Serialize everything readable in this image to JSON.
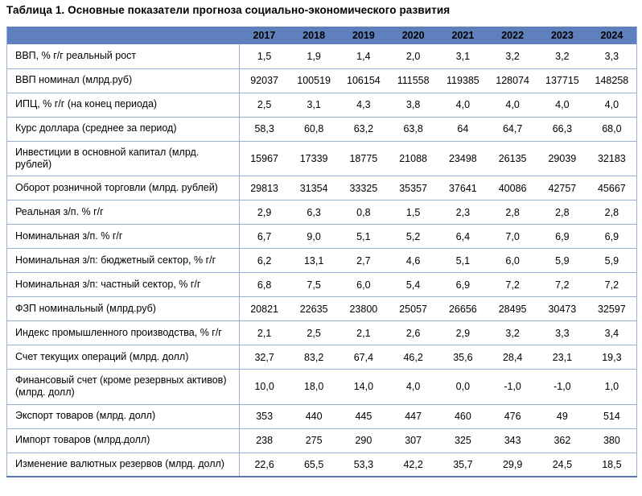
{
  "page": {
    "title": "Таблица 1. Основные показатели прогноза социально-экономического развития"
  },
  "colors": {
    "header_background": "#5E81BE",
    "row_separator": "#95B3D7",
    "table_bottom_border": "#5577AE",
    "text": "#000000"
  },
  "table": {
    "years": [
      "2017",
      "2018",
      "2019",
      "2020",
      "2021",
      "2022",
      "2023",
      "2024"
    ],
    "rows": [
      {
        "label": "ВВП, % г/г реальный рост",
        "values": [
          "1,5",
          "1,9",
          "1,4",
          "2,0",
          "3,1",
          "3,2",
          "3,2",
          "3,3"
        ]
      },
      {
        "label": "ВВП номинал (млрд.руб)",
        "values": [
          "92037",
          "100519",
          "106154",
          "111558",
          "119385",
          "128074",
          "137715",
          "148258"
        ]
      },
      {
        "label": "ИПЦ, % г/г (на конец периода)",
        "values": [
          "2,5",
          "3,1",
          "4,3",
          "3,8",
          "4,0",
          "4,0",
          "4,0",
          "4,0"
        ]
      },
      {
        "label": "Курс доллара (среднее за период)",
        "values": [
          "58,3",
          "60,8",
          "63,2",
          "63,8",
          "64",
          "64,7",
          "66,3",
          "68,0"
        ]
      },
      {
        "label": "Инвестиции в основной капитал (млрд. рублей)",
        "values": [
          "15967",
          "17339",
          "18775",
          "21088",
          "23498",
          "26135",
          "29039",
          "32183"
        ]
      },
      {
        "label": "Оборот розничной торговли (млрд. рублей)",
        "values": [
          "29813",
          "31354",
          "33325",
          "35357",
          "37641",
          "40086",
          "42757",
          "45667"
        ]
      },
      {
        "label": "Реальная з/п. % г/г",
        "values": [
          "2,9",
          "6,3",
          "0,8",
          "1,5",
          "2,3",
          "2,8",
          "2,8",
          "2,8"
        ]
      },
      {
        "label": "Номинальная з/п. % г/г",
        "values": [
          "6,7",
          "9,0",
          "5,1",
          "5,2",
          "6,4",
          "7,0",
          "6,9",
          "6,9"
        ]
      },
      {
        "label": "Номинальная з/п: бюджетный сектор, % г/г",
        "values": [
          "6,2",
          "13,1",
          "2,7",
          "4,6",
          "5,1",
          "6,0",
          "5,9",
          "5,9"
        ]
      },
      {
        "label": "Номинальная з/п: частный сектор, % г/г",
        "values": [
          "6,8",
          "7,5",
          "6,0",
          "5,4",
          "6,9",
          "7,2",
          "7,2",
          "7,2"
        ]
      },
      {
        "label": "ФЗП номинальный (млрд.руб)",
        "values": [
          "20821",
          "22635",
          "23800",
          "25057",
          "26656",
          "28495",
          "30473",
          "32597"
        ]
      },
      {
        "label": "Индекс промышленного производства, % г/г",
        "values": [
          "2,1",
          "2,5",
          "2,1",
          "2,6",
          "2,9",
          "3,2",
          "3,3",
          "3,4"
        ]
      },
      {
        "label": "Счет текущих операций (млрд. долл)",
        "values": [
          "32,7",
          "83,2",
          "67,4",
          "46,2",
          "35,6",
          "28,4",
          "23,1",
          "19,3"
        ]
      },
      {
        "label": "Финансовый счет (кроме резервных активов) (млрд. долл)",
        "values": [
          "10,0",
          "18,0",
          "14,0",
          "4,0",
          "0,0",
          "-1,0",
          "-1,0",
          "1,0"
        ]
      },
      {
        "label": "Экспорт товаров (млрд. долл)",
        "values": [
          "353",
          "440",
          "445",
          "447",
          "460",
          "476",
          "49",
          "514"
        ]
      },
      {
        "label": "Импорт товаров (млрд.долл)",
        "values": [
          "238",
          "275",
          "290",
          "307",
          "325",
          "343",
          "362",
          "380"
        ]
      },
      {
        "label": "Изменение валютных резервов  (млрд. долл)",
        "values": [
          "22,6",
          "65,5",
          "53,3",
          "42,2",
          "35,7",
          "29,9",
          "24,5",
          "18,5"
        ]
      }
    ]
  }
}
